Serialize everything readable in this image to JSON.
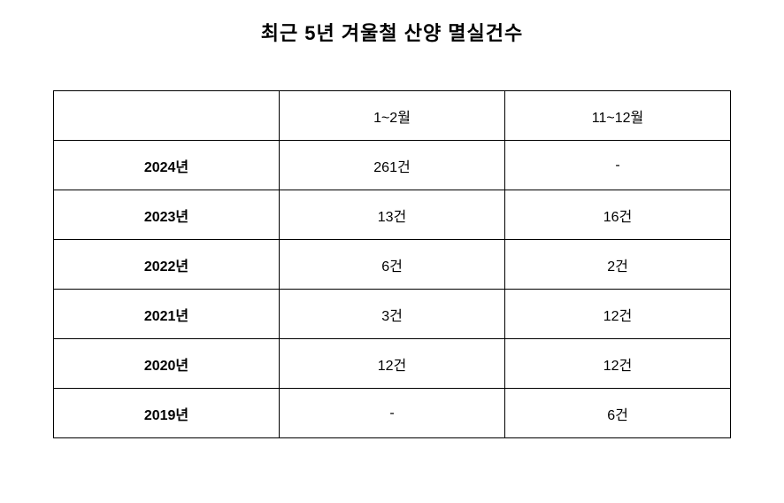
{
  "title": "최근 5년 겨울철 산양 멸실건수",
  "table": {
    "type": "table",
    "columns": [
      "",
      "1~2월",
      "11~12월"
    ],
    "rows": [
      {
        "year": "2024년",
        "jan_feb": "261건",
        "nov_dec": "-"
      },
      {
        "year": "2023년",
        "jan_feb": "13건",
        "nov_dec": "16건"
      },
      {
        "year": "2022년",
        "jan_feb": "6건",
        "nov_dec": "2건"
      },
      {
        "year": "2021년",
        "jan_feb": "3건",
        "nov_dec": "12건"
      },
      {
        "year": "2020년",
        "jan_feb": "12건",
        "nov_dec": "12건"
      },
      {
        "year": "2019년",
        "jan_feb": "-",
        "nov_dec": "6건"
      }
    ],
    "column_widths": [
      "33.33%",
      "33.33%",
      "33.33%"
    ],
    "cell_alignment": "center",
    "border_color": "#000000",
    "background_color": "#ffffff",
    "text_color": "#000000",
    "title_fontsize": 22,
    "cell_fontsize": 16
  }
}
